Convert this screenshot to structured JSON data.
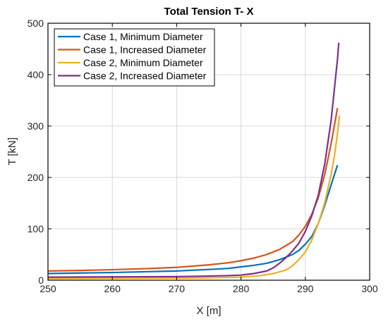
{
  "chart_data": {
    "type": "line",
    "title": "Total Tension T- X",
    "xlabel": "X [m]",
    "ylabel": "T [kN]",
    "xlim": [
      250,
      300
    ],
    "ylim": [
      0,
      500
    ],
    "xticks": [
      250,
      260,
      270,
      280,
      290,
      300
    ],
    "yticks": [
      0,
      100,
      200,
      300,
      400,
      500
    ],
    "grid": true,
    "legend_position": "top-left",
    "series": [
      {
        "name": "Case 1, Minimum Diameter",
        "color": "#0072BD",
        "x": [
          250,
          255,
          260,
          265,
          270,
          275,
          278,
          280,
          282,
          284,
          286,
          288,
          289,
          290,
          291,
          292,
          293,
          294,
          295
        ],
        "y": [
          13,
          14,
          15,
          16.5,
          18,
          21,
          23,
          26,
          29,
          33,
          40,
          50,
          58,
          70,
          85,
          110,
          145,
          185,
          224
        ]
      },
      {
        "name": "Case 1, Increased Diameter",
        "color": "#D95319",
        "x": [
          250,
          255,
          260,
          265,
          270,
          275,
          278,
          280,
          282,
          284,
          286,
          288,
          289,
          290,
          291,
          292,
          293,
          294,
          295
        ],
        "y": [
          18,
          19,
          20.5,
          22.5,
          25,
          30,
          34,
          38,
          43,
          50,
          60,
          75,
          88,
          105,
          128,
          160,
          205,
          265,
          335
        ]
      },
      {
        "name": "Case 2, Minimum Diameter",
        "color": "#EDB120",
        "x": [
          250,
          260,
          270,
          275,
          280,
          283,
          285,
          287,
          288,
          289,
          290,
          291,
          292,
          293,
          294,
          294.5,
          295,
          295.3
        ],
        "y": [
          3,
          3.5,
          4,
          4.5,
          6,
          9,
          13,
          20,
          28,
          40,
          55,
          78,
          110,
          150,
          205,
          240,
          285,
          320
        ]
      },
      {
        "name": "Case 2, Increased Diameter",
        "color": "#7E2F8E",
        "x": [
          250,
          260,
          270,
          275,
          278,
          280,
          282,
          284,
          285,
          286,
          287,
          288,
          289,
          290,
          291,
          292,
          293,
          294,
          294.5,
          295,
          295.2
        ],
        "y": [
          6,
          6.5,
          7,
          8,
          9,
          10,
          13,
          18,
          24,
          33,
          44,
          57,
          72,
          95,
          125,
          165,
          225,
          310,
          370,
          430,
          462
        ]
      }
    ]
  }
}
